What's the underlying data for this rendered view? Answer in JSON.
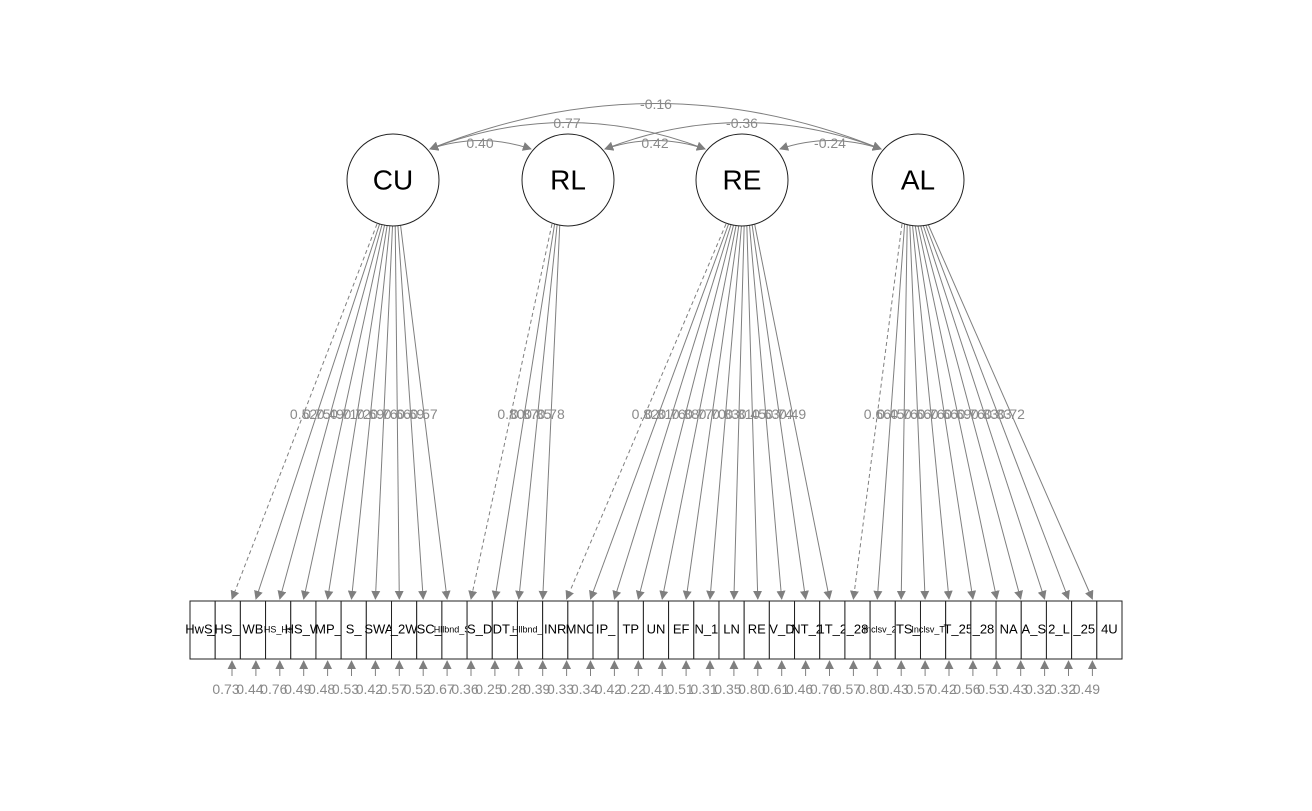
{
  "latents": [
    {
      "id": "CU",
      "label": "CU"
    },
    {
      "id": "RL",
      "label": "RL"
    },
    {
      "id": "RE",
      "label": "RE"
    },
    {
      "id": "AL",
      "label": "AL"
    }
  ],
  "observed": [
    {
      "label": "HwS_",
      "factor": "CU",
      "loading": "0.52",
      "residual": "0.73",
      "fixed": true
    },
    {
      "label": "_HS_V",
      "factor": "CU",
      "loading": "0.75",
      "residual": "0.44",
      "fixed": false
    },
    {
      "label": "WB",
      "factor": "CU",
      "loading": "0.49",
      "residual": "0.76",
      "fixed": false
    },
    {
      "label": "HS_Hs",
      "factor": "CU",
      "loading": "0.71",
      "residual": "0.49",
      "fixed": false,
      "small": true
    },
    {
      "label": "HS_W",
      "factor": "CU",
      "loading": "0.72",
      "residual": "0.48",
      "fixed": false
    },
    {
      "label": "MP_",
      "factor": "CU",
      "loading": "0.69",
      "residual": "0.53",
      "fixed": false
    },
    {
      "label": "S_",
      "factor": "CU",
      "loading": "0.76",
      "residual": "0.42",
      "fixed": false
    },
    {
      "label": "SWA",
      "factor": "CU",
      "loading": "0.66",
      "residual": "0.57",
      "fixed": false
    },
    {
      "label": "_2W",
      "factor": "CU",
      "loading": "0.69",
      "residual": "0.52",
      "fixed": false
    },
    {
      "label": "SC_",
      "factor": "CU",
      "loading": "0.57",
      "residual": "0.67",
      "fixed": false
    },
    {
      "label": "Hllbnd_S0",
      "factor": "RL",
      "loading": "0.80",
      "residual": "0.36",
      "fixed": true,
      "small": true
    },
    {
      "label": "S_D",
      "factor": "RL",
      "loading": "0.87",
      "residual": "0.25",
      "fixed": false
    },
    {
      "label": "DT_",
      "factor": "RL",
      "loading": "0.85",
      "residual": "0.28",
      "fixed": false
    },
    {
      "label": "Hllbnd_T",
      "factor": "RL",
      "loading": "0.78",
      "residual": "0.39",
      "fixed": false,
      "small": true
    },
    {
      "label": "INR",
      "factor": "RE",
      "loading": "0.82",
      "residual": "0.33",
      "fixed": true
    },
    {
      "label": "MNC",
      "factor": "RE",
      "loading": "0.81",
      "residual": "0.34",
      "fixed": false
    },
    {
      "label": "IP_",
      "factor": "RE",
      "loading": "0.76",
      "residual": "0.42",
      "fixed": false
    },
    {
      "label": "TP",
      "factor": "RE",
      "loading": "0.88",
      "residual": "0.22",
      "fixed": false
    },
    {
      "label": "UN",
      "factor": "RE",
      "loading": "0.77",
      "residual": "0.41",
      "fixed": false
    },
    {
      "label": "EF",
      "factor": "RE",
      "loading": "0.70",
      "residual": "0.51",
      "fixed": false
    },
    {
      "label": "N_1",
      "factor": "RE",
      "loading": "0.83",
      "residual": "0.31",
      "fixed": false
    },
    {
      "label": "LN",
      "factor": "RE",
      "loading": "0.81",
      "residual": "0.35",
      "fixed": false
    },
    {
      "label": "RE",
      "factor": "RE",
      "loading": "0.45",
      "residual": "0.80",
      "fixed": false
    },
    {
      "label": "V_D",
      "factor": "RE",
      "loading": "0.63",
      "residual": "0.61",
      "fixed": false
    },
    {
      "label": "NT_2",
      "factor": "RE",
      "loading": "0.74",
      "residual": "0.46",
      "fixed": false
    },
    {
      "label": "1T_2",
      "factor": "RE",
      "loading": "0.49",
      "residual": "0.76",
      "fixed": false
    },
    {
      "label": "_28",
      "factor": "AL",
      "loading": "0.66",
      "residual": "0.57",
      "fixed": true
    },
    {
      "label": "Inclsv_23",
      "factor": "AL",
      "loading": "0.45",
      "residual": "0.80",
      "fixed": false,
      "small": true
    },
    {
      "label": "TS_",
      "factor": "AL",
      "loading": "0.76",
      "residual": "0.43",
      "fixed": false
    },
    {
      "label": "Inclsv_T24",
      "factor": "AL",
      "loading": "0.66",
      "residual": "0.57",
      "fixed": false,
      "small": true
    },
    {
      "label": "T_25",
      "factor": "AL",
      "loading": "0.76",
      "residual": "0.42",
      "fixed": false
    },
    {
      "label": "_28",
      "factor": "AL",
      "loading": "0.66",
      "residual": "0.56",
      "fixed": false
    },
    {
      "label": "NA",
      "factor": "AL",
      "loading": "0.69",
      "residual": "0.53",
      "fixed": false
    },
    {
      "label": "A_S",
      "factor": "AL",
      "loading": "0.76",
      "residual": "0.43",
      "fixed": false
    },
    {
      "label": "2_L",
      "factor": "AL",
      "loading": "0.83",
      "residual": "0.32",
      "fixed": false
    },
    {
      "label": "_25",
      "factor": "AL",
      "loading": "0.83",
      "residual": "0.32",
      "fixed": false
    },
    {
      "label": "4U",
      "factor": "AL",
      "loading": "0.72",
      "residual": "0.49",
      "fixed": false
    }
  ],
  "covariances": [
    {
      "from": "CU",
      "to": "AL",
      "value": "-0.16"
    },
    {
      "from": "CU",
      "to": "RE",
      "value": "0.77"
    },
    {
      "from": "RL",
      "to": "AL",
      "value": "-0.36"
    },
    {
      "from": "CU",
      "to": "RL",
      "value": "0.40"
    },
    {
      "from": "RL",
      "to": "RE",
      "value": "0.42"
    },
    {
      "from": "RE",
      "to": "AL",
      "value": "-0.24"
    }
  ]
}
